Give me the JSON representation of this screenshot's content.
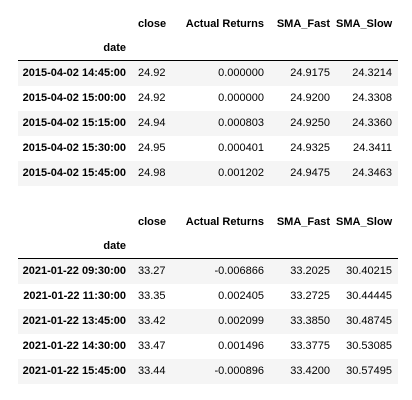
{
  "columns": {
    "close": "close",
    "actual_returns": "Actual Returns",
    "sma_fast": "SMA_Fast",
    "sma_slow": "SMA_Slow"
  },
  "index_name": "date",
  "top_frame": {
    "rows": [
      {
        "date": "2015-04-02 14:45:00",
        "close": "24.92",
        "actual_returns": "0.000000",
        "sma_fast": "24.9175",
        "sma_slow": "24.3214"
      },
      {
        "date": "2015-04-02 15:00:00",
        "close": "24.92",
        "actual_returns": "0.000000",
        "sma_fast": "24.9200",
        "sma_slow": "24.3308"
      },
      {
        "date": "2015-04-02 15:15:00",
        "close": "24.94",
        "actual_returns": "0.000803",
        "sma_fast": "24.9250",
        "sma_slow": "24.3360"
      },
      {
        "date": "2015-04-02 15:30:00",
        "close": "24.95",
        "actual_returns": "0.000401",
        "sma_fast": "24.9325",
        "sma_slow": "24.3411"
      },
      {
        "date": "2015-04-02 15:45:00",
        "close": "24.98",
        "actual_returns": "0.001202",
        "sma_fast": "24.9475",
        "sma_slow": "24.3463"
      }
    ]
  },
  "bottom_frame": {
    "rows": [
      {
        "date": "2021-01-22 09:30:00",
        "close": "33.27",
        "actual_returns": "-0.006866",
        "sma_fast": "33.2025",
        "sma_slow": "30.40215"
      },
      {
        "date": "2021-01-22 11:30:00",
        "close": "33.35",
        "actual_returns": "0.002405",
        "sma_fast": "33.2725",
        "sma_slow": "30.44445"
      },
      {
        "date": "2021-01-22 13:45:00",
        "close": "33.42",
        "actual_returns": "0.002099",
        "sma_fast": "33.3850",
        "sma_slow": "30.48745"
      },
      {
        "date": "2021-01-22 14:30:00",
        "close": "33.47",
        "actual_returns": "0.001496",
        "sma_fast": "33.3775",
        "sma_slow": "30.53085"
      },
      {
        "date": "2021-01-22 15:45:00",
        "close": "33.44",
        "actual_returns": "-0.000896",
        "sma_fast": "33.4200",
        "sma_slow": "30.57495"
      }
    ]
  }
}
